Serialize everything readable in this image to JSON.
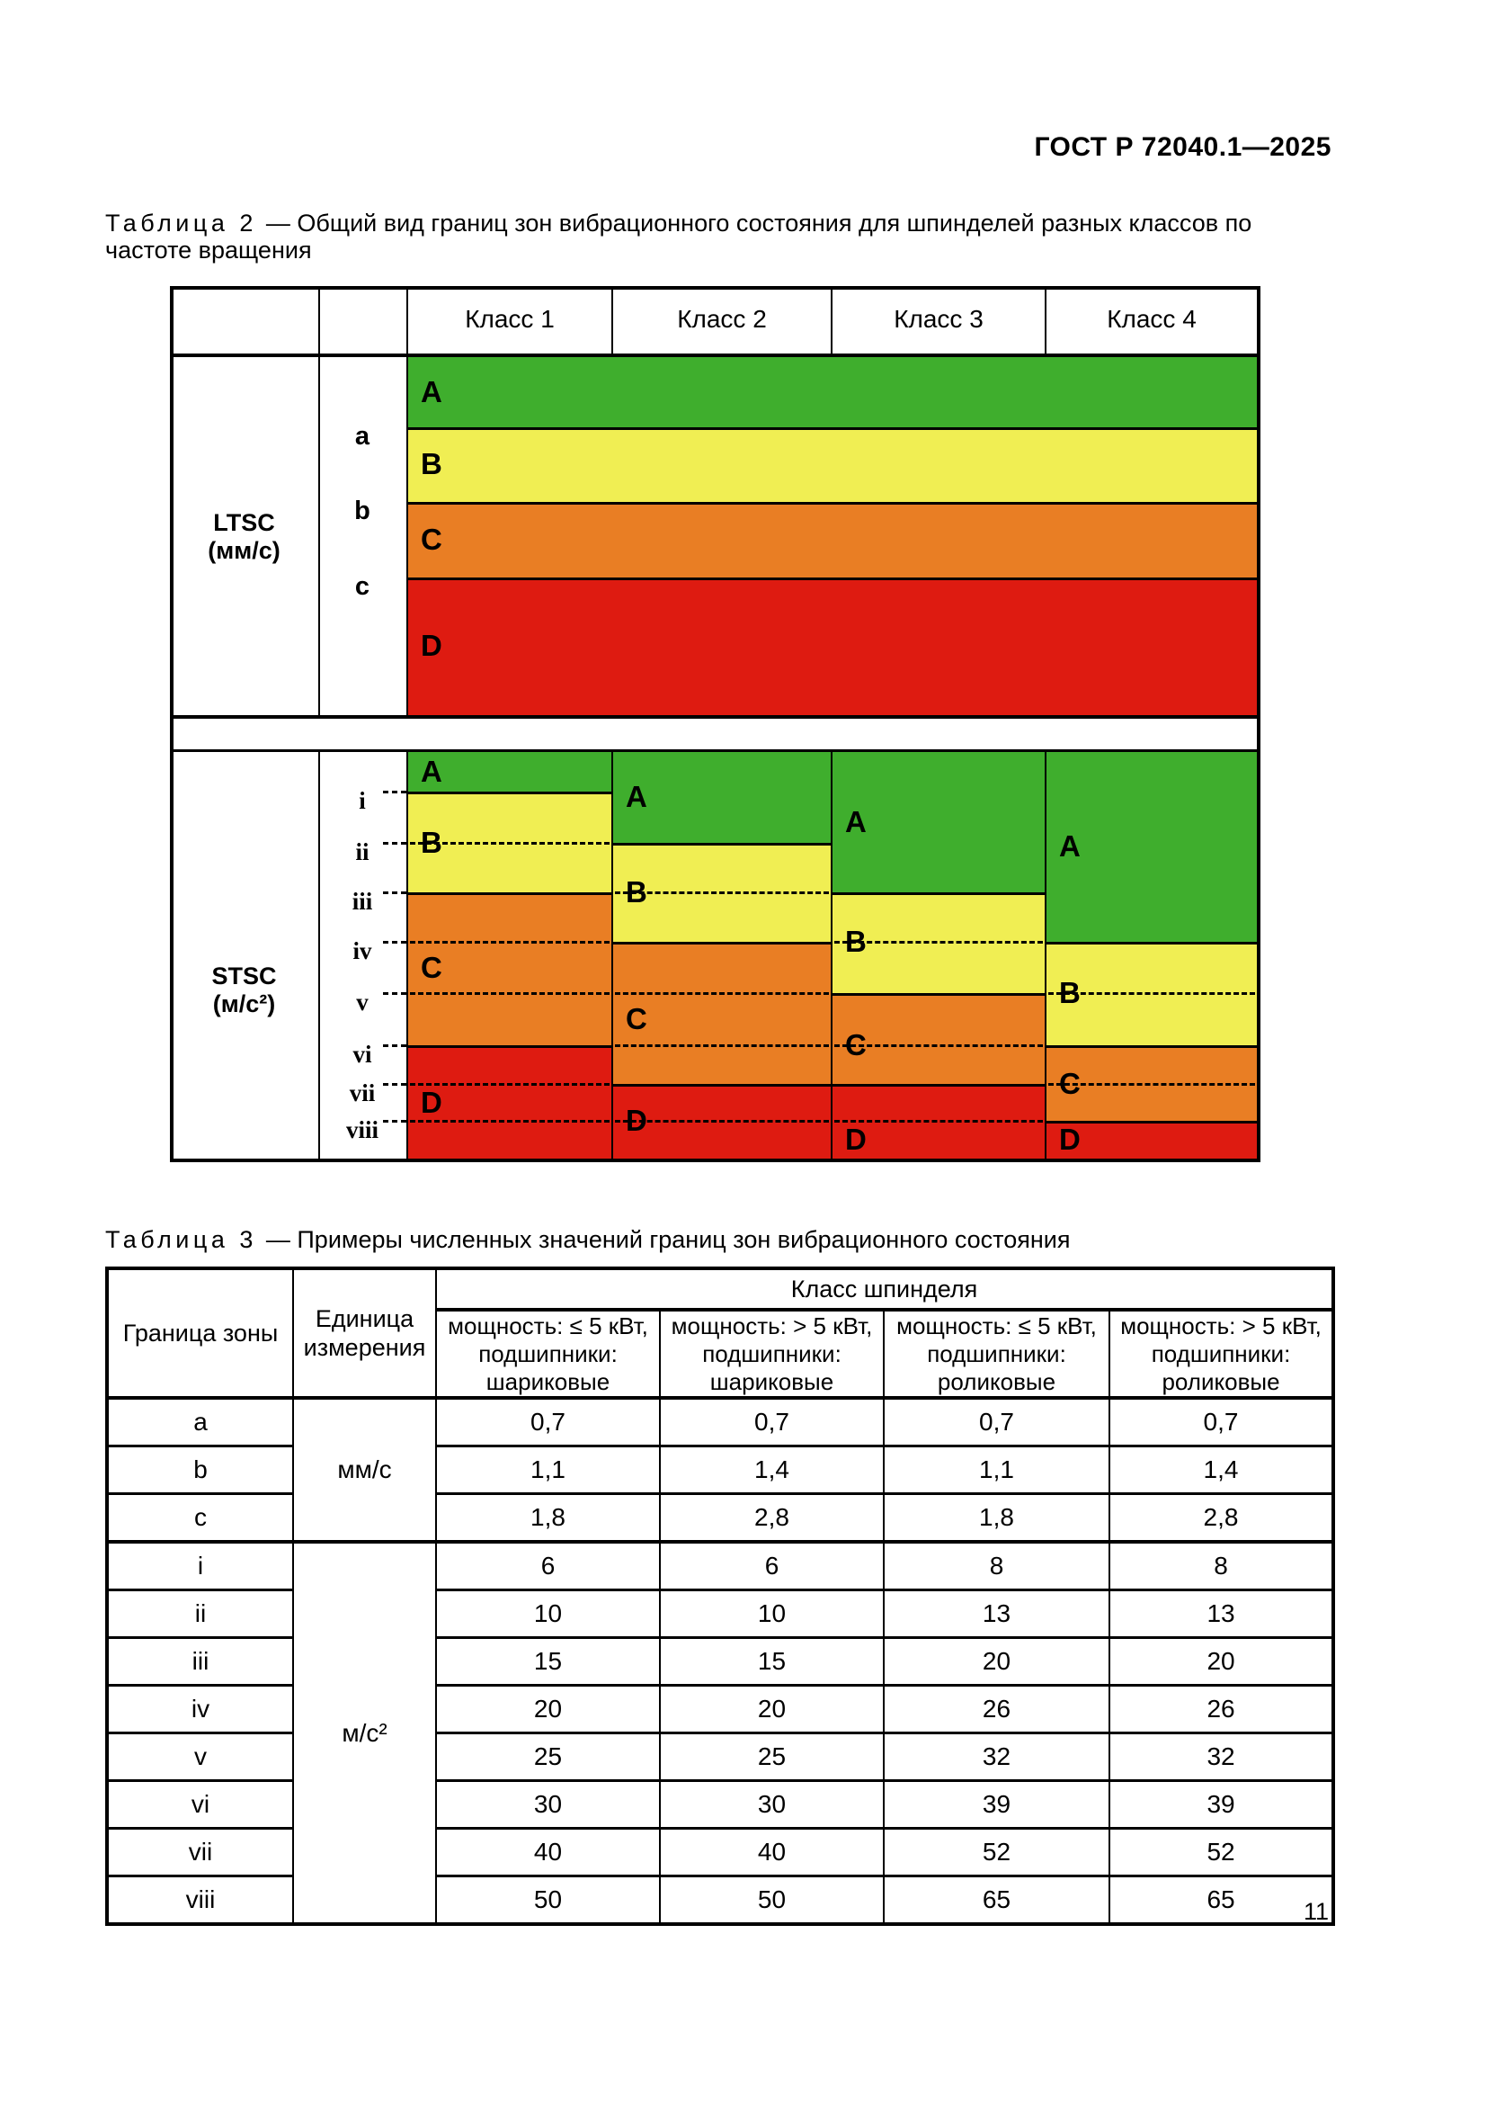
{
  "page": {
    "header": "ГОСТ Р 72040.1—2025",
    "page_number": "11"
  },
  "table2": {
    "caption_label": "Таблица 2",
    "caption_text": "— Общий вид границ зон вибрационного состояния для шпинделей разных классов по частоте вращения",
    "col_headers": [
      "Класс 1",
      "Класс 2",
      "Класс 3",
      "Класс 4"
    ],
    "colors": {
      "A": "#3fae2d",
      "B": "#f0ee53",
      "C": "#e97e24",
      "D": "#de1b11"
    },
    "ltsc": {
      "label": "LTSC",
      "unit": "(мм/с)",
      "zones": [
        "A",
        "B",
        "C",
        "D"
      ],
      "boundaries": [
        "a",
        "b",
        "c"
      ]
    },
    "stsc": {
      "label": "STSC",
      "unit": "(м/с²)",
      "levels": [
        "i",
        "ii",
        "iii",
        "iv",
        "v",
        "vi",
        "vii",
        "viii"
      ],
      "classes": [
        {
          "name": "Класс 1",
          "zones": [
            {
              "z": "A",
              "to": "i",
              "lab": "mid"
            },
            {
              "z": "B",
              "to": "iii",
              "lab": "ii"
            },
            {
              "z": "C",
              "to": "vi",
              "lab": "mid:iv,v"
            },
            {
              "z": "D",
              "to": "bottom",
              "lab": "mid:vii,viii"
            }
          ]
        },
        {
          "name": "Класс 2",
          "zones": [
            {
              "z": "A",
              "to": "ii",
              "lab": "mid"
            },
            {
              "z": "B",
              "to": "iv",
              "lab": "iii"
            },
            {
              "z": "C",
              "to": "vii",
              "lab": "mid:v,vi"
            },
            {
              "z": "D",
              "to": "bottom",
              "lab": "viii"
            }
          ]
        },
        {
          "name": "Класс 3",
          "zones": [
            {
              "z": "A",
              "to": "iii",
              "lab": "mid"
            },
            {
              "z": "B",
              "to": "v",
              "lab": "iv"
            },
            {
              "z": "C",
              "to": "vii",
              "lab": "vi"
            },
            {
              "z": "D",
              "to": "bottom",
              "lab": "mid:viii,bottom"
            }
          ]
        },
        {
          "name": "Класс 4",
          "zones": [
            {
              "z": "A",
              "to": "iv",
              "lab": "mid"
            },
            {
              "z": "B",
              "to": "vi",
              "lab": "v"
            },
            {
              "z": "C",
              "to": "viii",
              "lab": "vii"
            },
            {
              "z": "D",
              "to": "bottom",
              "lab": "mid:viii,bottom"
            }
          ]
        }
      ]
    }
  },
  "table3": {
    "caption_label": "Таблица 3",
    "caption_text": "— Примеры численных значений границ зон вибрационного состояния",
    "col_zone": "Граница зоны",
    "col_unit": "Единица\nизмерения",
    "span_header": "Класс шпинделя",
    "subheaders": [
      "мощность: ≤ 5 кВт,\nподшипники:\nшариковые",
      "мощность: > 5 кВт,\nподшипники:\nшариковые",
      "мощность: ≤ 5 кВт,\nподшипники:\nроликовые",
      "мощность: > 5 кВт,\nподшипники:\nроликовые"
    ],
    "groups": [
      {
        "unit": "мм/с",
        "rows": [
          {
            "label": "a",
            "values": [
              "0,7",
              "0,7",
              "0,7",
              "0,7"
            ]
          },
          {
            "label": "b",
            "values": [
              "1,1",
              "1,4",
              "1,1",
              "1,4"
            ]
          },
          {
            "label": "c",
            "values": [
              "1,8",
              "2,8",
              "1,8",
              "2,8"
            ]
          }
        ]
      },
      {
        "unit": "м/с²",
        "rows": [
          {
            "label": "i",
            "values": [
              "6",
              "6",
              "8",
              "8"
            ]
          },
          {
            "label": "ii",
            "values": [
              "10",
              "10",
              "13",
              "13"
            ]
          },
          {
            "label": "iii",
            "values": [
              "15",
              "15",
              "20",
              "20"
            ]
          },
          {
            "label": "iv",
            "values": [
              "20",
              "20",
              "26",
              "26"
            ]
          },
          {
            "label": "v",
            "values": [
              "25",
              "25",
              "32",
              "32"
            ]
          },
          {
            "label": "vi",
            "values": [
              "30",
              "30",
              "39",
              "39"
            ]
          },
          {
            "label": "vii",
            "values": [
              "40",
              "40",
              "52",
              "52"
            ]
          },
          {
            "label": "viii",
            "values": [
              "50",
              "50",
              "65",
              "65"
            ]
          }
        ]
      }
    ]
  }
}
